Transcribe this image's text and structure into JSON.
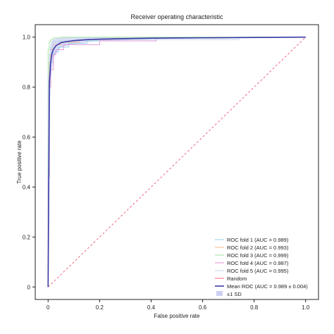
{
  "chart_data": {
    "type": "line",
    "title": "Receiver operating characteristic",
    "xlabel": "False positive rate",
    "ylabel": "True positive rate",
    "xlim": [
      -0.05,
      1.05
    ],
    "ylim": [
      -0.05,
      1.05
    ],
    "xticks": [
      "0",
      "0.2",
      "0.4",
      "0.6",
      "0.8",
      "1.0"
    ],
    "xtick_values": [
      0,
      0.2,
      0.4,
      0.6,
      0.8,
      1.0
    ],
    "yticks": [
      "0",
      "0.2",
      "0.4",
      "0.6",
      "0.8",
      "1.0"
    ],
    "ytick_values": [
      0,
      0.2,
      0.4,
      0.6,
      0.8,
      1.0
    ],
    "grid": false,
    "legend_position": "lower-right",
    "series": [
      {
        "name": "ROC fold 1 (AUC = 0.989)",
        "color": "#8fd3e6",
        "x": [
          0,
          0,
          0.005,
          0.005,
          0.01,
          0.01,
          0.02,
          0.02,
          0.04,
          0.04,
          0.08,
          0.08,
          0.15,
          0.15,
          0.3,
          0.3,
          1.0
        ],
        "y": [
          0,
          0.55,
          0.55,
          0.82,
          0.82,
          0.9,
          0.9,
          0.94,
          0.94,
          0.96,
          0.96,
          0.975,
          0.975,
          0.985,
          0.985,
          0.995,
          1.0
        ]
      },
      {
        "name": "ROC fold 2 (AUC = 0.993)",
        "color": "#f2b48c",
        "x": [
          0,
          0,
          0.004,
          0.004,
          0.01,
          0.01,
          0.02,
          0.02,
          0.05,
          0.05,
          0.12,
          0.12,
          0.25,
          0.25,
          1.0
        ],
        "y": [
          0,
          0.8,
          0.8,
          0.9,
          0.9,
          0.95,
          0.95,
          0.97,
          0.97,
          0.98,
          0.98,
          0.99,
          0.99,
          0.995,
          1.0
        ]
      },
      {
        "name": "ROC fold 3 (AUC = 0.999)",
        "color": "#9be39b",
        "x": [
          0,
          0,
          0.005,
          0.005,
          0.01,
          0.01,
          0.02,
          0.02,
          0.05,
          0.05,
          1.0
        ],
        "y": [
          0,
          0.95,
          0.95,
          0.98,
          0.98,
          0.99,
          0.99,
          0.997,
          0.997,
          1.0,
          1.0
        ]
      },
      {
        "name": "ROC fold 4 (AUC = 0.987)",
        "color": "#e08fd8",
        "x": [
          0,
          0,
          0.005,
          0.005,
          0.01,
          0.01,
          0.02,
          0.02,
          0.03,
          0.03,
          0.06,
          0.06,
          0.2,
          0.2,
          0.42,
          0.42,
          1.0
        ],
        "y": [
          0,
          0.44,
          0.44,
          0.8,
          0.8,
          0.87,
          0.87,
          0.93,
          0.93,
          0.95,
          0.95,
          0.97,
          0.97,
          0.985,
          0.985,
          0.995,
          1.0
        ]
      },
      {
        "name": "ROC fold 5 (AUC = 0.995)",
        "color": "#bcd3ea",
        "x": [
          0,
          0,
          0.005,
          0.005,
          0.01,
          0.01,
          0.02,
          0.02,
          0.04,
          0.04,
          0.1,
          0.1,
          0.74,
          0.74,
          1.0
        ],
        "y": [
          0,
          0.85,
          0.85,
          0.93,
          0.93,
          0.96,
          0.96,
          0.98,
          0.98,
          0.985,
          0.985,
          0.99,
          0.99,
          1.0,
          1.0
        ]
      }
    ],
    "random": {
      "name": "Random",
      "color": "#f06680",
      "x": [
        0,
        1
      ],
      "y": [
        0,
        1
      ]
    },
    "mean": {
      "name": "Mean ROC (AUC = 0.989 ± 0.004)",
      "color": "#3a3aa8",
      "x": [
        0,
        0.005,
        0.01,
        0.015,
        0.02,
        0.03,
        0.04,
        0.05,
        0.07,
        0.1,
        0.15,
        0.2,
        0.3,
        0.4,
        0.5,
        0.7,
        1.0
      ],
      "y": [
        0,
        0.82,
        0.9,
        0.935,
        0.95,
        0.965,
        0.972,
        0.978,
        0.982,
        0.986,
        0.99,
        0.992,
        0.994,
        0.996,
        0.997,
        0.998,
        1.0
      ]
    },
    "band": {
      "name": "±1 SD",
      "color": "#aab2ea",
      "upper": [
        0,
        0.93,
        0.97,
        0.985,
        0.99,
        0.995,
        0.997,
        0.998,
        0.999,
        1.0,
        1.0,
        1.0,
        1.0,
        1.0,
        1.0,
        1.0,
        1.0
      ],
      "lower": [
        0,
        0.68,
        0.82,
        0.88,
        0.91,
        0.935,
        0.948,
        0.958,
        0.965,
        0.972,
        0.98,
        0.984,
        0.988,
        0.992,
        0.994,
        0.996,
        1.0
      ]
    }
  }
}
